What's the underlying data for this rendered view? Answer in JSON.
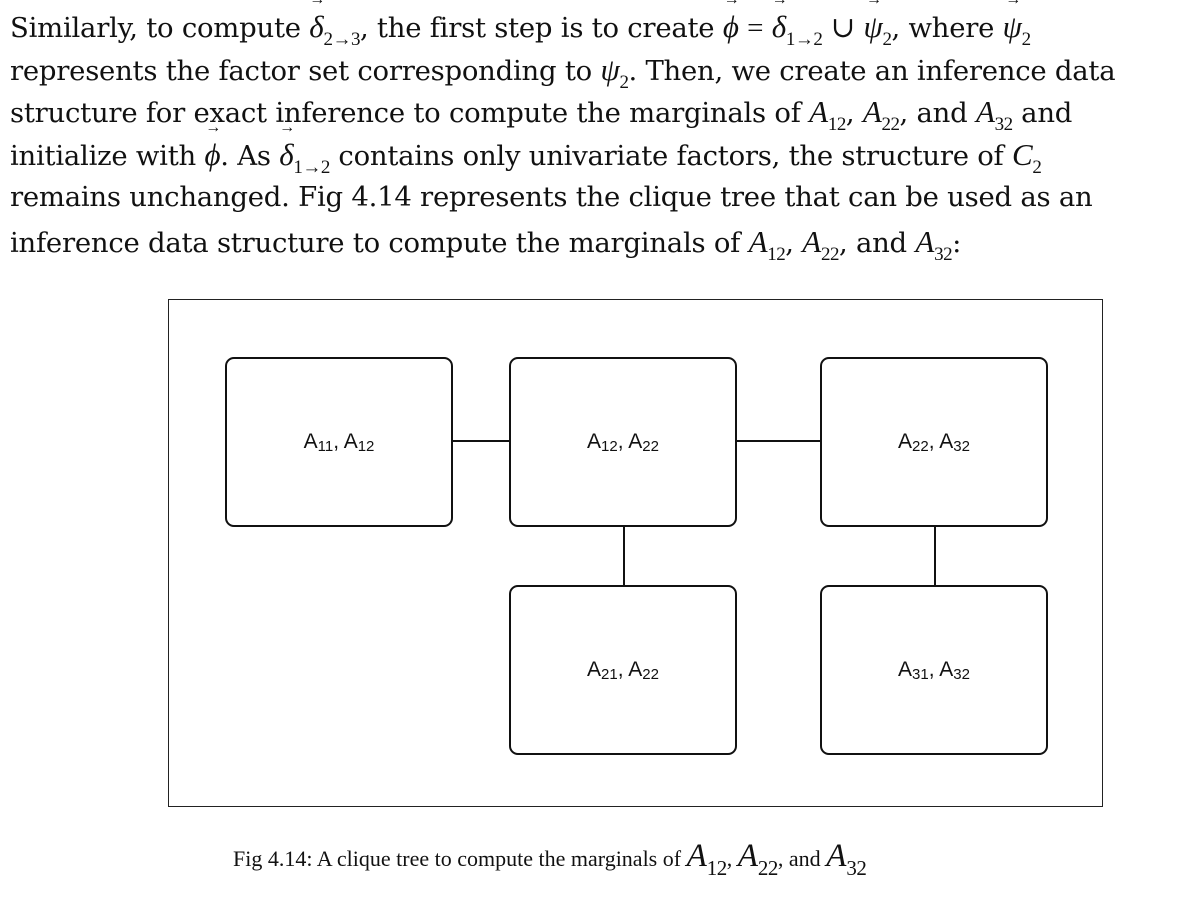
{
  "paragraph": {
    "l1_a": "Similarly, to compute",
    "l1_sym1": "δ",
    "l1_sub1": "2→3",
    "l1_b": ", the first step is to create",
    "l1_phi": "ϕ",
    "l1_eq": "=",
    "l1_sym2": "δ",
    "l1_sub2": "1→2",
    "l1_cup": "∪",
    "l1_psi": "ψ",
    "l1_sub3": "2",
    "l1_c": ", where",
    "l1_psi2": "ψ",
    "l1_sub4": "2",
    "l2_a": "represents the factor set corresponding to",
    "l2_psi": "ψ",
    "l2_sub": "2",
    "l2_b": ". Then, we create an inference data",
    "l3_a": "structure for exact inference to compute the marginals of",
    "l3_A1": "A",
    "l3_s1": "12",
    "l3_sep1": ",",
    "l3_A2": "A",
    "l3_s2": "22",
    "l3_sep2": ", and",
    "l3_A3": "A",
    "l3_s3": "32",
    "l3_b": "and",
    "l4_a": "initialize with",
    "l4_phi": "ϕ",
    "l4_b": ". As",
    "l4_delta": "δ",
    "l4_sub": "1→2",
    "l4_c": "contains only univariate factors, the structure of",
    "l4_C": "C",
    "l4_csub": "2",
    "l5": "remains unchanged. Fig 4.14 represents the clique tree that can be used as an",
    "l6_a": "inference data structure to compute the marginals of",
    "l6_A1": "A",
    "l6_s1": "12",
    "l6_sep1": ",",
    "l6_A2": "A",
    "l6_s2": "22",
    "l6_sep2": ", and",
    "l6_A3": "A",
    "l6_s3": "32",
    "l6_b": ":"
  },
  "figure": {
    "nodes": {
      "a11_a12": {
        "v1": "A",
        "s1": "11",
        "sep": ", ",
        "v2": "A",
        "s2": "12"
      },
      "a12_a22": {
        "v1": "A",
        "s1": "12",
        "sep": ", ",
        "v2": "A",
        "s2": "22"
      },
      "a22_a32": {
        "v1": "A",
        "s1": "22",
        "sep": ", ",
        "v2": "A",
        "s2": "32"
      },
      "a21_a22": {
        "v1": "A",
        "s1": "21",
        "sep": ", ",
        "v2": "A",
        "s2": "22"
      },
      "a31_a32": {
        "v1": "A",
        "s1": "31",
        "sep": ", ",
        "v2": "A",
        "s2": "32"
      }
    }
  },
  "caption": {
    "text": "Fig 4.14: A clique tree to compute the marginals of",
    "A1": "A",
    "s1": "12",
    "sep1": ",",
    "A2": "A",
    "s2": "22",
    "sep2": ", and",
    "A3": "A",
    "s3": "32"
  }
}
